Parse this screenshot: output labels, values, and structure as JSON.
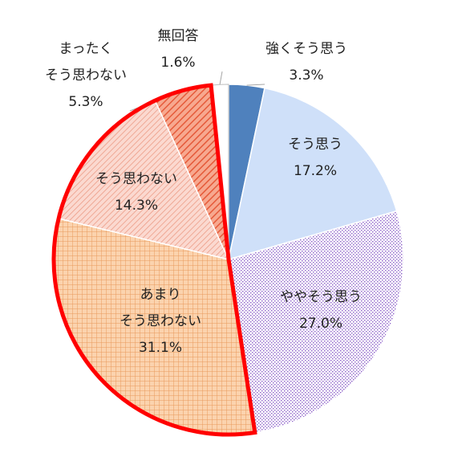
{
  "chart_data": {
    "type": "pie",
    "title": "",
    "slices": [
      {
        "label_lines": [
          "強くそう思う"
        ],
        "value": 3.3,
        "value_text": "3.3%",
        "color": "#4f81bd",
        "pattern": "solid"
      },
      {
        "label_lines": [
          "そう思う"
        ],
        "value": 17.2,
        "value_text": "17.2%",
        "color": "#cfe0f9",
        "pattern": "solid"
      },
      {
        "label_lines": [
          "ややそう思う"
        ],
        "value": 27.0,
        "value_text": "27.0%",
        "color": "#8a5cc8",
        "pattern": "dots"
      },
      {
        "label_lines": [
          "あまり",
          "そう思わない"
        ],
        "value": 31.1,
        "value_text": "31.1%",
        "color": "#f4b17a",
        "pattern": "grid"
      },
      {
        "label_lines": [
          "そう思わない"
        ],
        "value": 14.3,
        "value_text": "14.3%",
        "color": "#f2aa98",
        "pattern": "hatch-thin"
      },
      {
        "label_lines": [
          "まったく",
          "そう思わない"
        ],
        "value": 5.3,
        "value_text": "5.3%",
        "color": "#e86a4c",
        "pattern": "hatch-bold"
      },
      {
        "label_lines": [
          "無回答"
        ],
        "value": 1.6,
        "value_text": "1.6%",
        "color": "#ffffff",
        "pattern": "solid"
      }
    ],
    "highlight": {
      "slices": [
        "あまり そう思わない",
        "そう思わない",
        "まったく そう思わない"
      ],
      "outline_color": "#ff0000"
    }
  }
}
